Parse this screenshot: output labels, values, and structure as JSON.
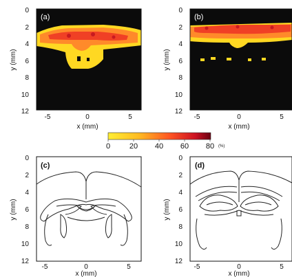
{
  "figure": {
    "colormap": {
      "low": "#ffee33",
      "mid": "#ff7722",
      "high": "#7a0010",
      "background": "#0b0b0b"
    },
    "colorbar": {
      "ticks": [
        "0",
        "20",
        "40",
        "60",
        "80"
      ],
      "unit": "(%)",
      "min": 0,
      "max": 80
    },
    "panels": [
      {
        "label": "(a)",
        "kind": "heatmap",
        "xlabel": "x (mm)",
        "ylabel": "y (mm)",
        "xticks": [
          "-5",
          "0",
          "5"
        ],
        "yticks": [
          "0",
          "2",
          "4",
          "6",
          "8",
          "10",
          "12"
        ]
      },
      {
        "label": "(b)",
        "kind": "heatmap",
        "xlabel": "x (mm)",
        "ylabel": "y (mm)",
        "xticks": [
          "-5",
          "0",
          "5"
        ],
        "yticks": [
          "0",
          "2",
          "4",
          "6",
          "8",
          "10",
          "12"
        ]
      },
      {
        "label": "(c)",
        "kind": "outline",
        "xlabel": "x (mm)",
        "ylabel": "y (mm)",
        "xticks": [
          "-5",
          "0",
          "5"
        ],
        "yticks": [
          "0",
          "2",
          "4",
          "6",
          "8",
          "10",
          "12"
        ]
      },
      {
        "label": "(d)",
        "kind": "outline",
        "xlabel": "x (mm)",
        "ylabel": "y (mm)",
        "xticks": [
          "-5",
          "0",
          "5"
        ],
        "yticks": [
          "0",
          "2",
          "4",
          "6",
          "8",
          "10",
          "12"
        ]
      }
    ]
  },
  "chart_data": [
    {
      "type": "heatmap",
      "title": "(a)",
      "xlabel": "x (mm)",
      "ylabel": "y (mm)",
      "xlim": [
        -7,
        7
      ],
      "ylim": [
        12,
        0
      ],
      "value_range": [
        0,
        80
      ],
      "unit": "%",
      "activation_bands": [
        {
          "x": [
            -7,
            7
          ],
          "y": [
            2.5,
            4.0
          ],
          "value": 55
        },
        {
          "x": [
            -2.5,
            2.5
          ],
          "y": [
            4.0,
            6.0
          ],
          "value": 20
        }
      ]
    },
    {
      "type": "heatmap",
      "title": "(b)",
      "xlabel": "x (mm)",
      "ylabel": "y (mm)",
      "xlim": [
        -7,
        7
      ],
      "ylim": [
        12,
        0
      ],
      "value_range": [
        0,
        80
      ],
      "unit": "%",
      "activation_bands": [
        {
          "x": [
            -7,
            7
          ],
          "y": [
            1.8,
            3.2
          ],
          "value": 60
        },
        {
          "x": [
            -7,
            7
          ],
          "y": [
            3.2,
            4.2
          ],
          "value": 20
        }
      ]
    },
    {
      "type": "line",
      "title": "(c)",
      "xlabel": "x (mm)",
      "ylabel": "y (mm)",
      "xlim": [
        -7,
        7
      ],
      "ylim": [
        12,
        0
      ]
    },
    {
      "type": "line",
      "title": "(d)",
      "xlabel": "x (mm)",
      "ylabel": "y (mm)",
      "xlim": [
        -7,
        7
      ],
      "ylim": [
        12,
        0
      ]
    }
  ]
}
